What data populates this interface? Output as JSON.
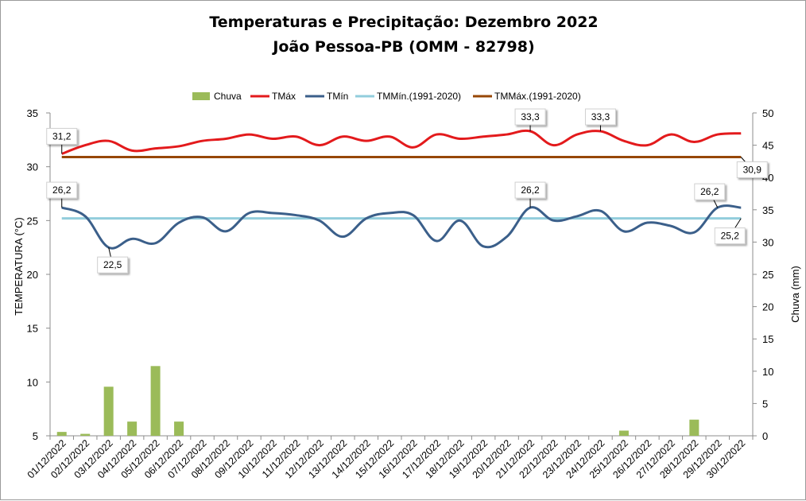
{
  "chart_data": {
    "type": "bar+line",
    "title_line1": "Temperaturas e Precipitação: Dezembro 2022",
    "title_line2": "João Pessoa-PB (OMM - 82798)",
    "ylabel_left": "TEMPERATURA (°C)",
    "ylabel_right": "Chuva (mm)",
    "ylim_left": [
      5,
      35
    ],
    "yticks_left": [
      5,
      10,
      15,
      20,
      25,
      30,
      35
    ],
    "ylim_right": [
      0,
      50
    ],
    "yticks_right": [
      0,
      5,
      10,
      15,
      20,
      25,
      30,
      35,
      40,
      45,
      50
    ],
    "categories": [
      "01/12/2022",
      "02/12/2022",
      "03/12/2022",
      "04/12/2022",
      "05/12/2022",
      "06/12/2022",
      "07/12/2022",
      "08/12/2022",
      "09/12/2022",
      "10/12/2022",
      "11/12/2022",
      "12/12/2022",
      "13/12/2022",
      "14/12/2022",
      "15/12/2022",
      "16/12/2022",
      "17/12/2022",
      "18/12/2022",
      "19/12/2022",
      "20/12/2022",
      "21/12/2022",
      "22/12/2022",
      "23/12/2022",
      "24/12/2022",
      "25/12/2022",
      "26/12/2022",
      "27/12/2022",
      "28/12/2022",
      "29/12/2022",
      "30/12/2022"
    ],
    "legend": [
      "Chuva",
      "TMáx",
      "TMín",
      "TMMín.(1991-2020)",
      "TMMáx.(1991-2020)"
    ],
    "series": [
      {
        "name": "Chuva",
        "kind": "bar",
        "axis": "right",
        "color": "#9bbb59",
        "values": [
          0.6,
          0.3,
          7.6,
          2.2,
          10.8,
          2.2,
          0,
          0,
          0,
          0,
          0,
          0,
          0,
          0,
          0,
          0,
          0,
          0,
          0,
          0,
          0,
          0,
          0,
          0,
          0.8,
          0,
          0,
          2.5,
          0,
          0
        ]
      },
      {
        "name": "TMáx",
        "kind": "line",
        "axis": "left",
        "color": "#e31a1c",
        "values": [
          31.2,
          32.0,
          32.4,
          31.5,
          31.7,
          31.9,
          32.4,
          32.6,
          33.0,
          32.6,
          32.8,
          32.0,
          32.8,
          32.4,
          32.8,
          31.8,
          33.0,
          32.6,
          32.8,
          33.0,
          33.3,
          32.0,
          33.0,
          33.3,
          32.4,
          32.0,
          33.0,
          32.3,
          33.0,
          33.1
        ]
      },
      {
        "name": "TMín",
        "kind": "line",
        "axis": "left",
        "color": "#3b5f8a",
        "values": [
          26.2,
          25.4,
          22.5,
          23.3,
          22.9,
          24.8,
          25.3,
          24.0,
          25.7,
          25.7,
          25.5,
          25.0,
          23.5,
          25.2,
          25.7,
          25.5,
          23.1,
          25.0,
          22.6,
          23.5,
          26.2,
          25.0,
          25.4,
          25.9,
          24.0,
          24.8,
          24.5,
          23.9,
          26.2,
          26.2
        ]
      },
      {
        "name": "TMMín.(1991-2020)",
        "kind": "line",
        "axis": "left",
        "color": "#92cddc",
        "value": 25.2
      },
      {
        "name": "TMMáx.(1991-2020)",
        "kind": "line",
        "axis": "left",
        "color": "#974706",
        "value": 30.9
      }
    ],
    "annotations": [
      {
        "text": "31,2",
        "series": "TMáx",
        "day": "01/12/2022"
      },
      {
        "text": "33,3",
        "series": "TMáx",
        "day": "21/12/2022"
      },
      {
        "text": "33,3",
        "series": "TMáx",
        "day": "24/12/2022"
      },
      {
        "text": "30,9",
        "series": "TMMáx.(1991-2020)",
        "day": "30/12/2022"
      },
      {
        "text": "26,2",
        "series": "TMín",
        "day": "01/12/2022"
      },
      {
        "text": "22,5",
        "series": "TMín",
        "day": "03/12/2022"
      },
      {
        "text": "26,2",
        "series": "TMín",
        "day": "21/12/2022"
      },
      {
        "text": "26,2",
        "series": "TMín",
        "day": "29/12/2022"
      },
      {
        "text": "25,2",
        "series": "TMMín.(1991-2020)",
        "day": "30/12/2022"
      }
    ]
  }
}
